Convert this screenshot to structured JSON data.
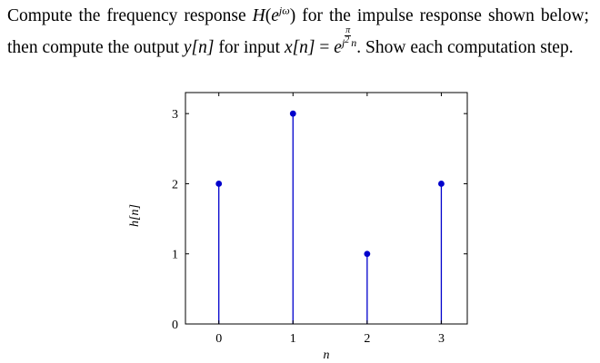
{
  "problem": {
    "p1": "Compute the frequency response ",
    "H": "H",
    "lparen": "(",
    "e1": "e",
    "jw": "jω",
    "rparen1": ")",
    "p2": " for the impulse response shown below; then compute the output ",
    "y_n": "y[n]",
    "p3": " for input ",
    "x_n": "x[n]",
    "eq": " = ",
    "e2": "e",
    "j": "j",
    "pi": "π",
    "two": "2",
    "n": "n",
    "p4": ". Show each computation step."
  },
  "chart_data": {
    "type": "stem",
    "title": "",
    "xlabel": "n",
    "ylabel": "h[n]",
    "x": [
      0,
      1,
      2,
      3
    ],
    "values": [
      2,
      3,
      1,
      2
    ],
    "xticks": [
      "0",
      "1",
      "2",
      "3"
    ],
    "yticks": [
      "0",
      "1",
      "2",
      "3"
    ],
    "xlim": [
      -0.45,
      3.35
    ],
    "ylim": [
      0,
      3.3
    ],
    "grid": false,
    "stem_color": "#0000cc",
    "marker_color": "#0000cc"
  }
}
